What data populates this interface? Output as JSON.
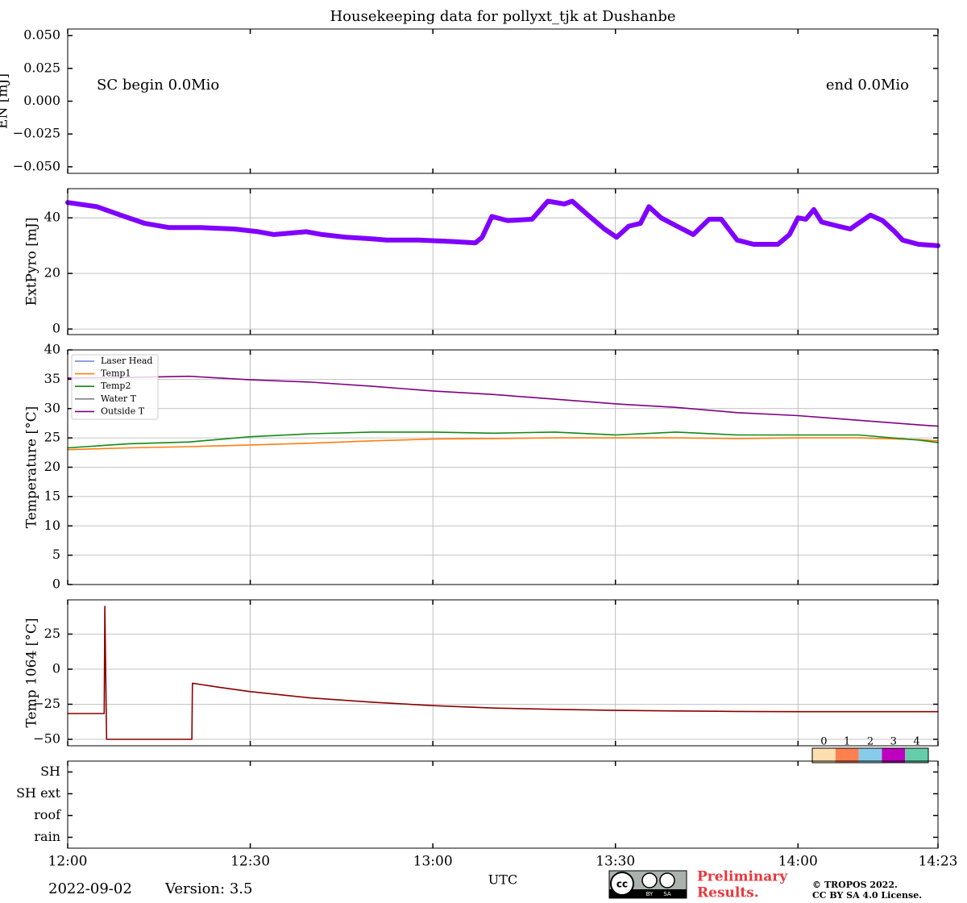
{
  "chart_data": [
    {
      "type": "line",
      "title": "Housekeeping data for pollyxt_tjk at Dushanbe",
      "ylabel": "EN [mJ]",
      "annotations": [
        "SC begin 0.0Mio",
        "end 0.0Mio"
      ],
      "ylim": [
        -0.055,
        0.055
      ],
      "yticks": [
        {
          "value": -0.05,
          "label": "−0.050"
        },
        {
          "value": -0.025,
          "label": "−0.025"
        },
        {
          "value": 0,
          "label": "0.000"
        },
        {
          "value": 0.025,
          "label": "0.025"
        },
        {
          "value": 0.05,
          "label": "0.050"
        }
      ],
      "grid": false,
      "x": [],
      "series": []
    },
    {
      "type": "line",
      "ylabel": "ExtPyro [mJ]",
      "ylim": [
        -2,
        50.5
      ],
      "yticks": [
        0,
        20,
        40
      ],
      "grid": true,
      "x": [
        0,
        4.8,
        8.7,
        12.7,
        16.7,
        22.0,
        27.3,
        31.3,
        33.9,
        39.2,
        41.8,
        45.8,
        49.8,
        52.4,
        57.7,
        63.0,
        67.0,
        68.1,
        69.7,
        72.3,
        76.3,
        78.9,
        81.6,
        82.9,
        85.5,
        88.2,
        90.2,
        92.2,
        94.1,
        95.5,
        97.5,
        100.1,
        102.8,
        105.4,
        107.4,
        110.0,
        112.7,
        116.7,
        118.6,
        120.0,
        121.3,
        122.6,
        123.9,
        126.6,
        128.6,
        129.9,
        131.9,
        133.9,
        135.9,
        137.2,
        139.8,
        143.0
      ],
      "series": [
        {
          "name": "ExtPyro",
          "color": "#8000ff",
          "marker": true,
          "values": [
            45.5,
            44,
            41,
            38,
            36.5,
            36.5,
            36,
            35,
            34,
            35,
            34,
            33,
            32.5,
            32,
            32,
            31.5,
            31,
            33,
            40.5,
            39,
            39.5,
            46,
            45,
            46,
            41,
            36,
            33,
            37,
            38,
            44,
            40,
            37,
            34,
            39.5,
            39.5,
            32,
            30.5,
            30.5,
            34,
            40,
            39.5,
            43,
            38.5,
            37,
            36,
            38,
            41,
            39,
            35,
            32,
            30.5,
            30
          ]
        }
      ]
    },
    {
      "type": "line",
      "ylabel": "Temperature [°C]",
      "ylim": [
        0,
        40
      ],
      "yticks": [
        0,
        5,
        10,
        15,
        20,
        25,
        30,
        35,
        40
      ],
      "grid": true,
      "legend": "upper left",
      "x": [
        0,
        10,
        20,
        30,
        40,
        50,
        60,
        70,
        80,
        90,
        100,
        110,
        120,
        130,
        140,
        143
      ],
      "series": [
        {
          "name": "Laser Head",
          "color": "#6b7fe0",
          "values": [
            null,
            null,
            null,
            null,
            null,
            null,
            null,
            null,
            null,
            null,
            null,
            null,
            null,
            null,
            null,
            null
          ]
        },
        {
          "name": "Temp1",
          "color": "#ff7f0e",
          "values": [
            23.0,
            23.3,
            23.5,
            23.8,
            24.1,
            24.5,
            24.8,
            24.9,
            25.0,
            25.0,
            25.0,
            24.9,
            25.0,
            25.0,
            24.7,
            24.5
          ]
        },
        {
          "name": "Temp2",
          "color": "#138a13",
          "values": [
            23.3,
            24.0,
            24.3,
            25.2,
            25.7,
            26.0,
            26.0,
            25.8,
            26.0,
            25.5,
            26.0,
            25.5,
            25.5,
            25.5,
            24.6,
            24.2
          ]
        },
        {
          "name": "Water T",
          "color": "#808080",
          "values": [
            null,
            null,
            null,
            null,
            null,
            null,
            null,
            null,
            null,
            null,
            null,
            null,
            null,
            null,
            null,
            null
          ]
        },
        {
          "name": "Outside T",
          "color": "#800080",
          "values": [
            35.2,
            35.3,
            35.5,
            34.9,
            34.5,
            33.8,
            33.0,
            32.4,
            31.6,
            30.8,
            30.2,
            29.3,
            28.8,
            28.0,
            27.2,
            27.0
          ]
        }
      ]
    },
    {
      "type": "line",
      "ylabel": "Temp 1064 [°C]",
      "ylim": [
        -54.6,
        49.4
      ],
      "yticks": [
        {
          "value": -50,
          "label": "−50"
        },
        {
          "value": -25,
          "label": "−25"
        },
        0,
        25
      ],
      "grid": true,
      "x": [
        0,
        6.0,
        6.1,
        6.4,
        20.4,
        20.5,
        25,
        30,
        40,
        50,
        60,
        70,
        80,
        90,
        100,
        110,
        120,
        130,
        143
      ],
      "series": [
        {
          "name": "Temp 1064",
          "color": "#8b0000",
          "values": [
            -31.6,
            -31.6,
            44.8,
            -50,
            -50,
            -10,
            -13,
            -16,
            -20.5,
            -23.5,
            -26,
            -27.7,
            -28.6,
            -29.4,
            -29.8,
            -30.1,
            -30.3,
            -30.3,
            -30.3
          ]
        }
      ]
    },
    {
      "type": "status",
      "categories": [
        "SH",
        "SH ext",
        "roof",
        "rain"
      ],
      "levels": [
        0,
        1,
        2,
        3,
        4
      ],
      "colors": [
        "#fee0b0",
        "#fd8050",
        "#88ccea",
        "#c000c0",
        "#66cdaa"
      ],
      "xlim": [
        0,
        143
      ],
      "xticks": [
        {
          "value": 0,
          "label": "12:00"
        },
        {
          "value": 30,
          "label": "12:30"
        },
        {
          "value": 60,
          "label": "13:00"
        },
        {
          "value": 90,
          "label": "13:30"
        },
        {
          "value": 120,
          "label": "14:00"
        },
        {
          "value": 143,
          "label": "14:23"
        }
      ],
      "xlabel": "UTC"
    }
  ],
  "footer": {
    "date": "2022-09-02",
    "version": "Version: 3.5",
    "cc": [
      "BY",
      "SA"
    ],
    "preliminary": [
      "Preliminary",
      "Results."
    ],
    "copyright": [
      "© TROPOS 2022.",
      "CC BY SA 4.0 License."
    ]
  }
}
